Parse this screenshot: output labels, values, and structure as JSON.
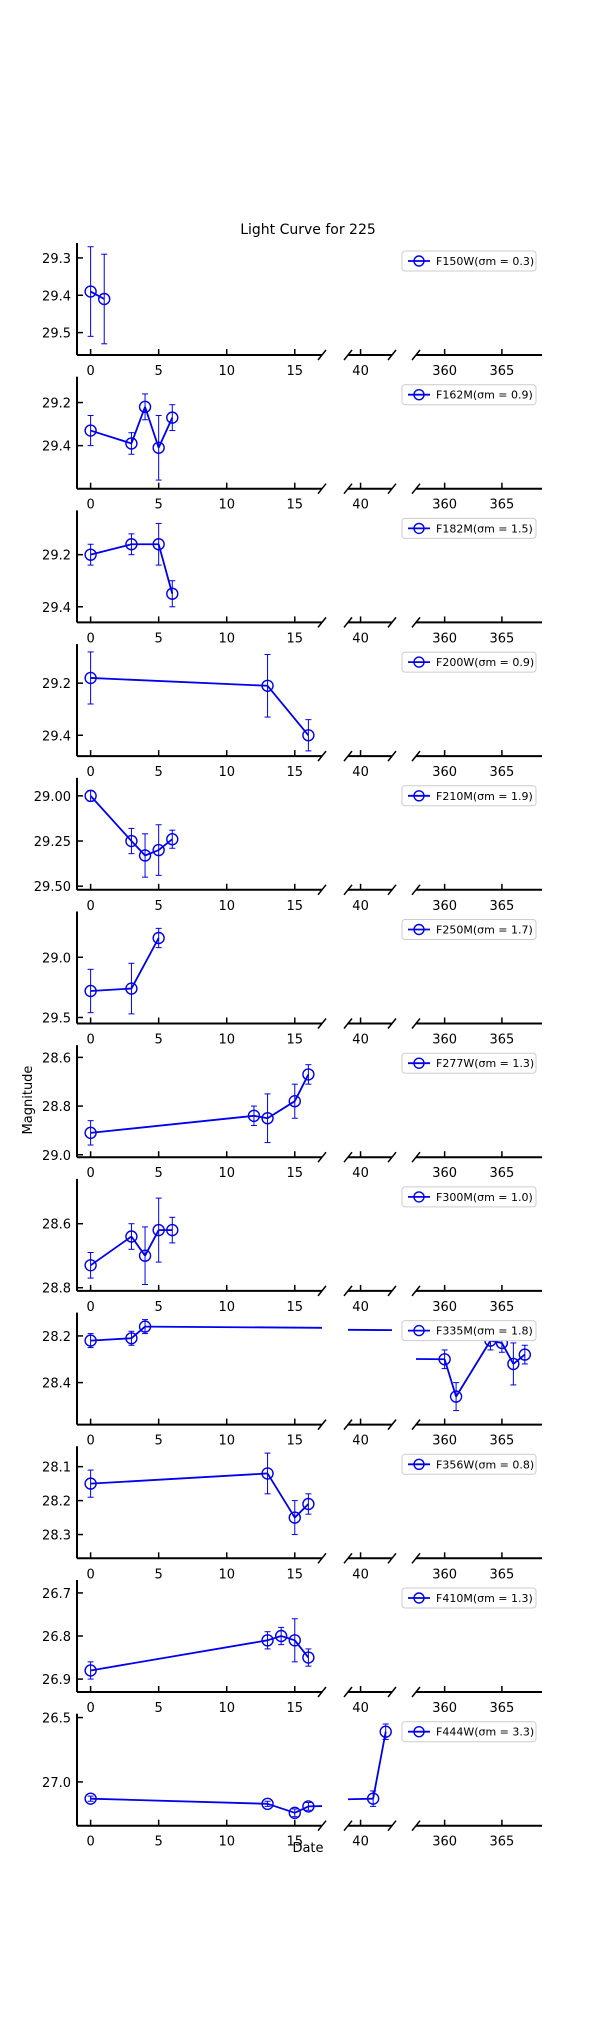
{
  "chart_data": {
    "type": "line",
    "title": "Light Curve for 225",
    "xlabel": "Date",
    "ylabel": "Magnitude",
    "y_inverted": true,
    "broken_x_axis": true,
    "x_segments": [
      [
        -1,
        17
      ],
      [
        39,
        42.5
      ],
      [
        357.5,
        368.5
      ]
    ],
    "x_ticks": [
      [
        0,
        5,
        10,
        15
      ],
      [
        40
      ],
      [
        360,
        365
      ]
    ],
    "legend_position": "upper right",
    "grid": false,
    "series_color": "#0000ee",
    "panels": [
      {
        "legend": "F150W(σm = 0.3)",
        "ylim": [
          29.26,
          29.56
        ],
        "yticks": [
          "29.3",
          "29.4",
          "29.5"
        ],
        "points": [
          {
            "x": 0,
            "y": 29.39,
            "err": 0.12
          },
          {
            "x": 1,
            "y": 29.41,
            "err": 0.12
          }
        ]
      },
      {
        "legend": "F162M(σm = 0.9)",
        "ylim": [
          29.08,
          29.6
        ],
        "yticks": [
          "29.2",
          "29.4"
        ],
        "points": [
          {
            "x": 0,
            "y": 29.33,
            "err": 0.07
          },
          {
            "x": 3,
            "y": 29.39,
            "err": 0.05
          },
          {
            "x": 4,
            "y": 29.22,
            "err": 0.06
          },
          {
            "x": 5,
            "y": 29.41,
            "err": 0.15
          },
          {
            "x": 6,
            "y": 29.27,
            "err": 0.06
          }
        ]
      },
      {
        "legend": "F182M(σm = 1.5)",
        "ylim": [
          29.03,
          29.46
        ],
        "yticks": [
          "29.2",
          "29.4"
        ],
        "points": [
          {
            "x": 0,
            "y": 29.2,
            "err": 0.04
          },
          {
            "x": 3,
            "y": 29.16,
            "err": 0.04
          },
          {
            "x": 5,
            "y": 29.16,
            "err": 0.08
          },
          {
            "x": 6,
            "y": 29.35,
            "err": 0.05
          }
        ]
      },
      {
        "legend": "F200W(σm = 0.9)",
        "ylim": [
          29.05,
          29.48
        ],
        "yticks": [
          "29.2",
          "29.4"
        ],
        "points": [
          {
            "x": 0,
            "y": 29.18,
            "err": 0.1
          },
          {
            "x": 13,
            "y": 29.21,
            "err": 0.12
          },
          {
            "x": 16,
            "y": 29.4,
            "err": 0.06
          }
        ]
      },
      {
        "legend": "F210M(σm = 1.9)",
        "ylim": [
          28.9,
          29.52
        ],
        "yticks": [
          "29.00",
          "29.25",
          "29.50"
        ],
        "points": [
          {
            "x": 0,
            "y": 29.0,
            "err": 0.03
          },
          {
            "x": 3,
            "y": 29.25,
            "err": 0.07
          },
          {
            "x": 4,
            "y": 29.33,
            "err": 0.12
          },
          {
            "x": 5,
            "y": 29.3,
            "err": 0.14
          },
          {
            "x": 6,
            "y": 29.24,
            "err": 0.05
          }
        ]
      },
      {
        "legend": "F250M(σm = 1.7)",
        "ylim": [
          28.62,
          29.55
        ],
        "yticks": [
          "29.0",
          "29.5"
        ],
        "points": [
          {
            "x": 0,
            "y": 29.28,
            "err": 0.18
          },
          {
            "x": 3,
            "y": 29.26,
            "err": 0.21
          },
          {
            "x": 5,
            "y": 28.84,
            "err": 0.08
          }
        ]
      },
      {
        "legend": "F277W(σm = 1.3)",
        "ylim": [
          28.55,
          29.01
        ],
        "yticks": [
          "28.6",
          "28.8",
          "29.0"
        ],
        "points": [
          {
            "x": 0,
            "y": 28.91,
            "err": 0.05
          },
          {
            "x": 12,
            "y": 28.84,
            "err": 0.04
          },
          {
            "x": 13,
            "y": 28.85,
            "err": 0.1
          },
          {
            "x": 15,
            "y": 28.78,
            "err": 0.07
          },
          {
            "x": 16,
            "y": 28.67,
            "err": 0.04
          }
        ]
      },
      {
        "legend": "F300M(σm = 1.0)",
        "ylim": [
          28.46,
          28.81
        ],
        "yticks": [
          "28.6",
          "28.8"
        ],
        "points": [
          {
            "x": 0,
            "y": 28.73,
            "err": 0.04
          },
          {
            "x": 3,
            "y": 28.64,
            "err": 0.04
          },
          {
            "x": 4,
            "y": 28.7,
            "err": 0.09
          },
          {
            "x": 5,
            "y": 28.62,
            "err": 0.1
          },
          {
            "x": 6,
            "y": 28.62,
            "err": 0.04
          }
        ]
      },
      {
        "legend": "F335M(σm = 1.8)",
        "ylim": [
          28.1,
          28.58
        ],
        "yticks": [
          "28.2",
          "28.4"
        ],
        "points": [
          {
            "x": 0,
            "y": 28.22,
            "err": 0.03
          },
          {
            "x": 3,
            "y": 28.21,
            "err": 0.03
          },
          {
            "x": 4,
            "y": 28.16,
            "err": 0.03
          },
          {
            "x": 360,
            "y": 28.3,
            "err": 0.04
          },
          {
            "x": 361,
            "y": 28.46,
            "err": 0.06
          },
          {
            "x": 364,
            "y": 28.22,
            "err": 0.04
          },
          {
            "x": 365,
            "y": 28.23,
            "err": 0.04
          },
          {
            "x": 366,
            "y": 28.32,
            "err": 0.09
          },
          {
            "x": 367,
            "y": 28.28,
            "err": 0.04
          }
        ]
      },
      {
        "legend": "F356W(σm = 0.8)",
        "ylim": [
          28.04,
          28.37
        ],
        "yticks": [
          "28.1",
          "28.2",
          "28.3"
        ],
        "points": [
          {
            "x": 0,
            "y": 28.15,
            "err": 0.04
          },
          {
            "x": 13,
            "y": 28.12,
            "err": 0.06
          },
          {
            "x": 15,
            "y": 28.25,
            "err": 0.05
          },
          {
            "x": 16,
            "y": 28.21,
            "err": 0.03
          }
        ]
      },
      {
        "legend": "F410M(σm = 1.3)",
        "ylim": [
          26.67,
          26.93
        ],
        "yticks": [
          "26.7",
          "26.8",
          "26.9"
        ],
        "points": [
          {
            "x": 0,
            "y": 26.88,
            "err": 0.02
          },
          {
            "x": 13,
            "y": 26.81,
            "err": 0.02
          },
          {
            "x": 14,
            "y": 26.8,
            "err": 0.02
          },
          {
            "x": 15,
            "y": 26.81,
            "err": 0.05
          },
          {
            "x": 16,
            "y": 26.85,
            "err": 0.02
          }
        ]
      },
      {
        "legend": "F444W(σm = 3.3)",
        "ylim": [
          26.47,
          27.34
        ],
        "yticks": [
          "26.5",
          "27.0"
        ],
        "points": [
          {
            "x": 0,
            "y": 27.13,
            "err": 0.02
          },
          {
            "x": 13,
            "y": 27.17,
            "err": 0.02
          },
          {
            "x": 15,
            "y": 27.24,
            "err": 0.03
          },
          {
            "x": 16,
            "y": 27.19,
            "err": 0.03
          },
          {
            "x": 41,
            "y": 27.13,
            "err": 0.06
          },
          {
            "x": 42,
            "y": 26.61,
            "err": 0.06
          }
        ]
      }
    ]
  }
}
